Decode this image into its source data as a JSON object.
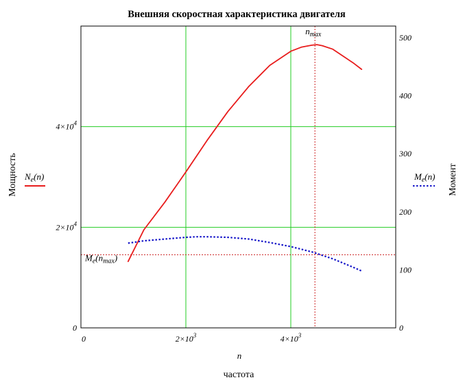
{
  "chart_data": {
    "type": "line",
    "title": "Внешняя скоростная характеристика двигателя",
    "x_axis": {
      "symbol": "n",
      "label": "частота",
      "range": [
        0,
        6000
      ],
      "ticks": [
        {
          "value": 0,
          "mantissa": "0",
          "exp": ""
        },
        {
          "value": 2000,
          "mantissa": "2×10",
          "exp": "3"
        },
        {
          "value": 4000,
          "mantissa": "4×10",
          "exp": "3"
        }
      ]
    },
    "y_left": {
      "label": "Мощность",
      "range": [
        0,
        60000
      ],
      "ticks": [
        {
          "value": 0,
          "mantissa": "0",
          "exp": ""
        },
        {
          "value": 20000,
          "mantissa": "2×10",
          "exp": "4"
        },
        {
          "value": 40000,
          "mantissa": "4×10",
          "exp": "4"
        }
      ]
    },
    "y_right": {
      "label": "Момент",
      "range": [
        0,
        520
      ],
      "ticks": [
        0,
        100,
        200,
        300,
        400,
        500
      ]
    },
    "grid": true,
    "series": [
      {
        "name": "Ne(n)",
        "legend_base": "N",
        "legend_sub": "e",
        "legend_arg": "(n)",
        "axis": "left",
        "color": "#e81c1c",
        "style": "solid",
        "x": [
          900,
          1200,
          1600,
          2000,
          2400,
          2800,
          3200,
          3600,
          4000,
          4200,
          4400,
          4500,
          4600,
          4800,
          5000,
          5200,
          5350
        ],
        "y": [
          13200,
          19500,
          25000,
          31000,
          37200,
          43000,
          48000,
          52200,
          55000,
          55800,
          56200,
          56300,
          56100,
          55400,
          54000,
          52600,
          51400
        ]
      },
      {
        "name": "Me(n)",
        "legend_base": "M",
        "legend_sub": "e",
        "legend_arg": "(n)",
        "axis": "right",
        "color": "#1414c8",
        "style": "dotted",
        "x": [
          900,
          1200,
          1600,
          2000,
          2200,
          2400,
          2800,
          3200,
          3600,
          4000,
          4400,
          4800,
          5200,
          5350
        ],
        "y": [
          146,
          150,
          153,
          156,
          157,
          157,
          156,
          153,
          147,
          140,
          131,
          119,
          104,
          98
        ]
      }
    ],
    "markers": {
      "vertical": {
        "label_base": "n",
        "label_sub": "max",
        "x": 4460,
        "color": "#cc2222"
      },
      "horizontal": {
        "label_base": "M",
        "label_sub": "e",
        "label_arg": "n",
        "label_arg_sub": "max",
        "y": 126,
        "axis": "right",
        "color": "#cc2222"
      }
    }
  }
}
